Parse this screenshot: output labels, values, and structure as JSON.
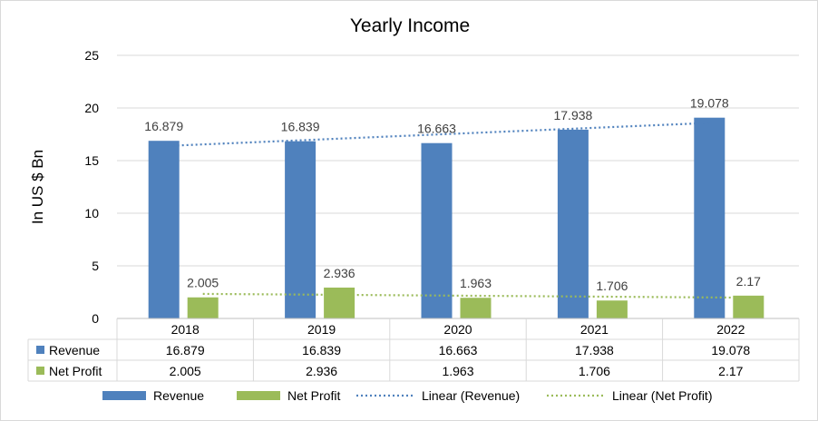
{
  "chart_data": {
    "type": "bar",
    "title": "Yearly Income",
    "ylabel": "In US $ Bn",
    "xlabel": "",
    "ylim": [
      0,
      25
    ],
    "y_ticks": [
      0,
      5,
      10,
      15,
      20,
      25
    ],
    "grid": true,
    "legend_position": "bottom",
    "categories": [
      "2018",
      "2019",
      "2020",
      "2021",
      "2022"
    ],
    "series": [
      {
        "name": "Revenue",
        "color": "#4f81bd",
        "values": [
          16.879,
          16.839,
          16.663,
          17.938,
          19.078
        ],
        "labels": [
          "16.879",
          "16.839",
          "16.663",
          "17.938",
          "19.078"
        ]
      },
      {
        "name": "Net Profit",
        "color": "#9bbb59",
        "values": [
          2.005,
          2.936,
          1.963,
          1.706,
          2.17
        ],
        "labels": [
          "2.005",
          "2.936",
          "1.963",
          "1.706",
          "2.17"
        ]
      }
    ],
    "trendlines": [
      {
        "name": "Linear (Revenue)",
        "series": "Revenue",
        "color": "#4f81bd",
        "style": "dotted"
      },
      {
        "name": "Linear (Net Profit)",
        "series": "Net Profit",
        "color": "#9bbb59",
        "style": "dotted"
      }
    ],
    "data_table": true
  }
}
